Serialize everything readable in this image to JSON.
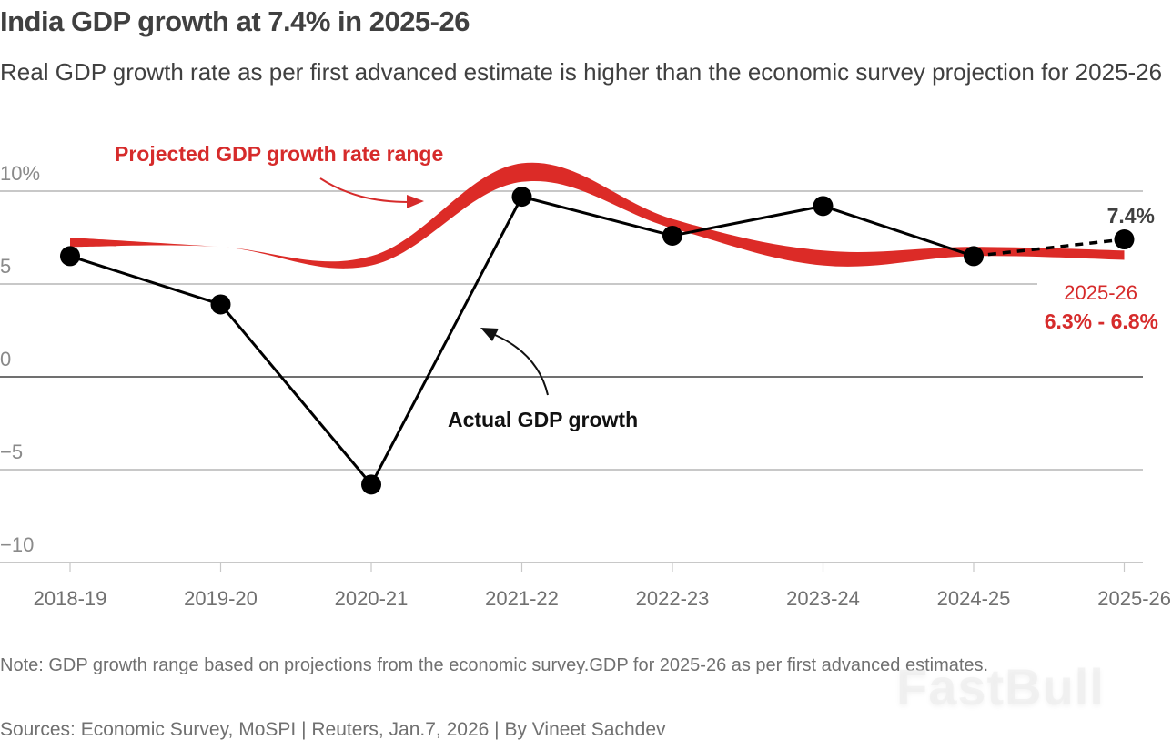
{
  "header": {
    "title": "India GDP growth at 7.4% in 2025-26",
    "subtitle": "Real GDP growth rate as per first advanced estimate is higher than the economic survey projection for 2025-26"
  },
  "colors": {
    "band": "#dc2b27",
    "line": "#000000",
    "grid": "#c8c8c8",
    "zero_line": "#404040",
    "accent_text": "#d62b2b"
  },
  "chart_data": {
    "type": "line",
    "title": "India GDP growth at 7.4% in 2025-26",
    "xlabel": "",
    "ylabel": "",
    "categories": [
      "2018-19",
      "2019-20",
      "2020-21",
      "2021-22",
      "2022-23",
      "2023-24",
      "2024-25",
      "2025-26"
    ],
    "ylim": [
      -10,
      10
    ],
    "y_ticks": [
      10,
      5,
      0,
      -5,
      -10
    ],
    "y_tick_labels": [
      "10%",
      "5",
      "0",
      "−5",
      "−10"
    ],
    "grid": true,
    "series": [
      {
        "name": "Actual GDP growth",
        "type": "line",
        "values": [
          6.5,
          3.9,
          -5.8,
          9.7,
          7.6,
          9.2,
          6.5,
          7.4
        ],
        "dashed_from_index": 6
      },
      {
        "name": "Projected GDP growth rate range",
        "type": "range-band",
        "low": [
          7.0,
          7.0,
          6.0,
          10.5,
          8.0,
          6.0,
          6.5,
          6.3
        ],
        "high": [
          7.5,
          7.0,
          6.5,
          11.5,
          8.5,
          6.8,
          7.0,
          6.8
        ]
      }
    ],
    "annotations": {
      "band_label": "Projected GDP growth rate range",
      "line_label": "Actual GDP growth",
      "end_value": "7.4%",
      "range_year": "2025-26",
      "range_value": "6.3% - 6.8%"
    }
  },
  "footer": {
    "note": "Note: GDP growth range based on projections from the economic survey.GDP for 2025-26 as per first advanced estimates.",
    "sources": "Sources: Economic Survey, MoSPI | Reuters, Jan.7, 2026 | By Vineet Sachdev",
    "watermark": "FastBull"
  }
}
